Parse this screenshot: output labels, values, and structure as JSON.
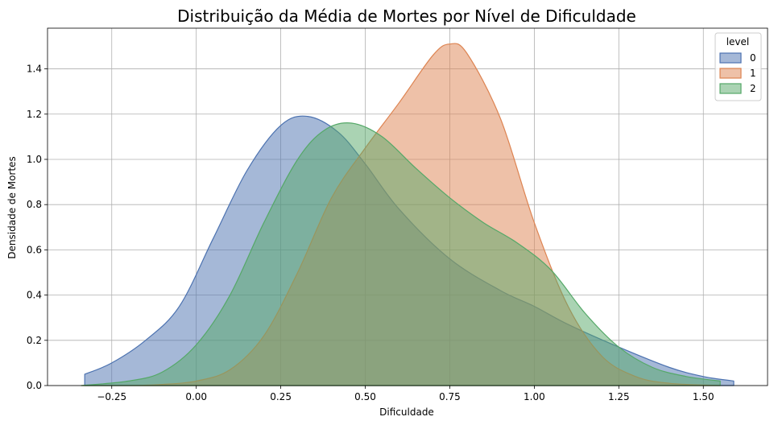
{
  "chart_data": {
    "type": "area",
    "title": "Distribuição da Média de Mortes por Nível de Dificuldade",
    "xlabel": "Dificuldade",
    "ylabel": "Densidade de Mortes",
    "xlim": [
      -0.44,
      1.69
    ],
    "ylim": [
      0,
      1.58
    ],
    "xticks": [
      -0.25,
      0.0,
      0.25,
      0.5,
      0.75,
      1.0,
      1.25,
      1.5
    ],
    "xtick_labels": [
      "−0.25",
      "0.00",
      "0.25",
      "0.50",
      "0.75",
      "1.00",
      "1.25",
      "1.50"
    ],
    "yticks": [
      0.0,
      0.2,
      0.4,
      0.6,
      0.8,
      1.0,
      1.2,
      1.4
    ],
    "ytick_labels": [
      "0.0",
      "0.2",
      "0.4",
      "0.6",
      "0.8",
      "1.0",
      "1.2",
      "1.4"
    ],
    "grid": true,
    "legend": {
      "title": "level",
      "position": "top-right"
    },
    "series": [
      {
        "name": "0",
        "color": "#4c72b0",
        "x": [
          -0.33,
          -0.25,
          -0.15,
          -0.05,
          0.05,
          0.15,
          0.25,
          0.33,
          0.42,
          0.5,
          0.6,
          0.75,
          0.9,
          1.0,
          1.1,
          1.25,
          1.4,
          1.5,
          1.59
        ],
        "y": [
          0.05,
          0.1,
          0.2,
          0.35,
          0.65,
          0.95,
          1.15,
          1.19,
          1.12,
          0.98,
          0.78,
          0.56,
          0.42,
          0.35,
          0.27,
          0.17,
          0.08,
          0.04,
          0.02
        ]
      },
      {
        "name": "1",
        "color": "#dd8452",
        "x": [
          -0.34,
          -0.2,
          -0.1,
          0.0,
          0.1,
          0.2,
          0.3,
          0.4,
          0.5,
          0.6,
          0.7,
          0.75,
          0.8,
          0.9,
          1.0,
          1.1,
          1.2,
          1.3,
          1.4,
          1.55
        ],
        "y": [
          0.0,
          0.0,
          0.005,
          0.02,
          0.07,
          0.22,
          0.5,
          0.83,
          1.05,
          1.25,
          1.46,
          1.51,
          1.47,
          1.18,
          0.72,
          0.35,
          0.13,
          0.04,
          0.01,
          0.0
        ]
      },
      {
        "name": "2",
        "color": "#55a868",
        "x": [
          -0.34,
          -0.2,
          -0.1,
          0.0,
          0.1,
          0.2,
          0.3,
          0.38,
          0.46,
          0.55,
          0.65,
          0.75,
          0.85,
          0.95,
          1.05,
          1.15,
          1.25,
          1.35,
          1.45,
          1.55
        ],
        "y": [
          0.0,
          0.02,
          0.06,
          0.18,
          0.4,
          0.72,
          1.0,
          1.13,
          1.16,
          1.1,
          0.96,
          0.83,
          0.72,
          0.63,
          0.51,
          0.32,
          0.17,
          0.08,
          0.04,
          0.02
        ]
      }
    ]
  }
}
